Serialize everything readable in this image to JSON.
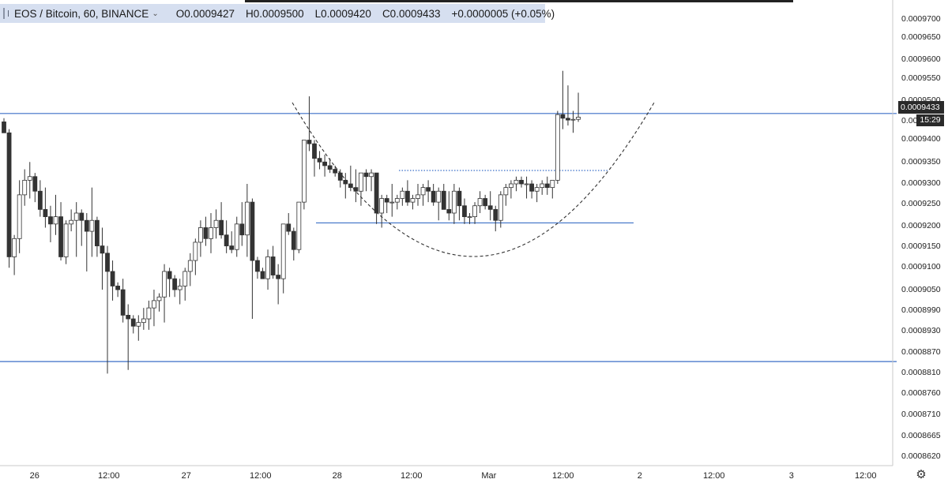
{
  "header": {
    "symbol": "EOS / Bitcoin, 60, BINANCE",
    "open": "O0.0009427",
    "high": "H0.0009500",
    "low": "L0.0009420",
    "close": "C0.0009433",
    "change": "+0.0000005 (+0.05%)"
  },
  "price_axis": {
    "labels": [
      "0.0009700",
      "0.0009650",
      "0.0009600",
      "0.0009550",
      "0.0009500",
      "0.0009450",
      "0.0009400",
      "0.0009350",
      "0.0009300",
      "0.0009250",
      "0.0009200",
      "0.0009150",
      "0.0009100",
      "0.0009050",
      "0.0008990",
      "0.0008930",
      "0.0008870",
      "0.0008810",
      "0.0008760",
      "0.0008710",
      "0.0008665",
      "0.0008620"
    ],
    "current_price": "0.0009433",
    "countdown": "15:29"
  },
  "time_axis": {
    "labels": [
      "26",
      "12:00",
      "27",
      "12:00",
      "28",
      "12:00",
      "Mar",
      "12:00",
      "2",
      "12:00",
      "3",
      "12:00"
    ]
  },
  "colors": {
    "candle_up": "#ffffff",
    "candle_down": "#333333",
    "candle_outline": "#333333",
    "horizontal_line": "#3b6fc7",
    "pattern_curve": "#333333",
    "neckline": "#3b6fc7"
  },
  "icons": {
    "settings": "gear-icon",
    "expand": "plus-square-icon"
  },
  "chart_data": {
    "type": "candlestick",
    "title": "EOS / Bitcoin, 60, BINANCE",
    "xlabel": "",
    "ylabel": "",
    "ylim": [
      0.00086,
      0.000975
    ],
    "grid": false,
    "horizontal_lines": [
      0.0009443,
      0.0009143,
      0.0008763
    ],
    "annotations": [
      "cup pattern (dashed curve)",
      "dotted neckline at ~0.0009285"
    ],
    "candles": [
      {
        "o": 0.000942,
        "h": 0.000943,
        "l": 0.000939,
        "c": 0.000939
      },
      {
        "o": 0.000939,
        "h": 0.00094,
        "l": 0.000902,
        "c": 0.000905
      },
      {
        "o": 0.000905,
        "h": 0.000911,
        "l": 0.0009,
        "c": 0.00091
      },
      {
        "o": 0.00091,
        "h": 0.000926,
        "l": 0.000906,
        "c": 0.000922
      },
      {
        "o": 0.000922,
        "h": 0.000929,
        "l": 0.000919,
        "c": 0.000926
      },
      {
        "o": 0.000926,
        "h": 0.000931,
        "l": 0.000921,
        "c": 0.000927
      },
      {
        "o": 0.000927,
        "h": 0.000928,
        "l": 0.00092,
        "c": 0.000923
      },
      {
        "o": 0.000923,
        "h": 0.000926,
        "l": 0.000916,
        "c": 0.000918
      },
      {
        "o": 0.000918,
        "h": 0.000924,
        "l": 0.000913,
        "c": 0.000916
      },
      {
        "o": 0.000916,
        "h": 0.000919,
        "l": 0.000909,
        "c": 0.000914
      },
      {
        "o": 0.000914,
        "h": 0.000922,
        "l": 0.000911,
        "c": 0.000916
      },
      {
        "o": 0.000916,
        "h": 0.00092,
        "l": 0.000904,
        "c": 0.000905
      },
      {
        "o": 0.000905,
        "h": 0.000915,
        "l": 0.000903,
        "c": 0.000914
      },
      {
        "o": 0.000914,
        "h": 0.000918,
        "l": 0.000912,
        "c": 0.000915
      },
      {
        "o": 0.000915,
        "h": 0.00092,
        "l": 0.000905,
        "c": 0.000917
      },
      {
        "o": 0.000917,
        "h": 0.000918,
        "l": 0.000908,
        "c": 0.000915
      },
      {
        "o": 0.000915,
        "h": 0.000917,
        "l": 0.000901,
        "c": 0.000912
      },
      {
        "o": 0.000912,
        "h": 0.000924,
        "l": 0.000905,
        "c": 0.000915
      },
      {
        "o": 0.000915,
        "h": 0.000916,
        "l": 0.000905,
        "c": 0.000908
      },
      {
        "o": 0.000908,
        "h": 0.000913,
        "l": 0.000896,
        "c": 0.000906
      },
      {
        "o": 0.000906,
        "h": 0.000908,
        "l": 0.000873,
        "c": 0.000901
      },
      {
        "o": 0.000901,
        "h": 0.000904,
        "l": 0.000893,
        "c": 0.000897
      },
      {
        "o": 0.000897,
        "h": 0.000898,
        "l": 0.000894,
        "c": 0.000896
      },
      {
        "o": 0.000896,
        "h": 0.000899,
        "l": 0.000887,
        "c": 0.000889
      },
      {
        "o": 0.000889,
        "h": 0.000892,
        "l": 0.000874,
        "c": 0.000888
      },
      {
        "o": 0.000888,
        "h": 0.000889,
        "l": 0.000884,
        "c": 0.000886
      },
      {
        "o": 0.000886,
        "h": 0.000889,
        "l": 0.000882,
        "c": 0.000887
      },
      {
        "o": 0.000887,
        "h": 0.000891,
        "l": 0.000885,
        "c": 0.000888
      },
      {
        "o": 0.000888,
        "h": 0.000893,
        "l": 0.000885,
        "c": 0.000891
      },
      {
        "o": 0.000891,
        "h": 0.000896,
        "l": 0.000886,
        "c": 0.000893
      },
      {
        "o": 0.000893,
        "h": 0.000895,
        "l": 0.00089,
        "c": 0.000894
      },
      {
        "o": 0.000894,
        "h": 0.000903,
        "l": 0.000887,
        "c": 0.000901
      },
      {
        "o": 0.000901,
        "h": 0.000902,
        "l": 0.000894,
        "c": 0.000899
      },
      {
        "o": 0.000899,
        "h": 0.0009,
        "l": 0.000894,
        "c": 0.000896
      },
      {
        "o": 0.000896,
        "h": 0.000899,
        "l": 0.000892,
        "c": 0.000897
      },
      {
        "o": 0.000897,
        "h": 0.000902,
        "l": 0.000893,
        "c": 0.000901
      },
      {
        "o": 0.000901,
        "h": 0.000906,
        "l": 0.000897,
        "c": 0.000904
      },
      {
        "o": 0.000904,
        "h": 0.00091,
        "l": 0.0009,
        "c": 0.000909
      },
      {
        "o": 0.000909,
        "h": 0.000915,
        "l": 0.000905,
        "c": 0.000913
      },
      {
        "o": 0.000913,
        "h": 0.000916,
        "l": 0.000908,
        "c": 0.00091
      },
      {
        "o": 0.00091,
        "h": 0.000917,
        "l": 0.000906,
        "c": 0.000913
      },
      {
        "o": 0.000913,
        "h": 0.000918,
        "l": 0.00091,
        "c": 0.000915
      },
      {
        "o": 0.000915,
        "h": 0.00092,
        "l": 0.00091,
        "c": 0.000911
      },
      {
        "o": 0.000911,
        "h": 0.000915,
        "l": 0.000906,
        "c": 0.000908
      },
      {
        "o": 0.000908,
        "h": 0.000912,
        "l": 0.000906,
        "c": 0.000907
      },
      {
        "o": 0.000907,
        "h": 0.000916,
        "l": 0.000905,
        "c": 0.000914
      },
      {
        "o": 0.000914,
        "h": 0.00092,
        "l": 0.000908,
        "c": 0.000911
      },
      {
        "o": 0.000911,
        "h": 0.000925,
        "l": 0.000905,
        "c": 0.00092
      },
      {
        "o": 0.00092,
        "h": 0.000921,
        "l": 0.000888,
        "c": 0.000904
      },
      {
        "o": 0.000904,
        "h": 0.000905,
        "l": 0.000899,
        "c": 0.000901
      },
      {
        "o": 0.000901,
        "h": 0.000902,
        "l": 0.000899,
        "c": 0.000899
      },
      {
        "o": 0.000899,
        "h": 0.000907,
        "l": 0.000896,
        "c": 0.000905
      },
      {
        "o": 0.000905,
        "h": 0.000908,
        "l": 0.000899,
        "c": 0.0009
      },
      {
        "o": 0.0009,
        "h": 0.000903,
        "l": 0.000892,
        "c": 0.000899
      },
      {
        "o": 0.000899,
        "h": 0.000913,
        "l": 0.000895,
        "c": 0.000914
      },
      {
        "o": 0.000914,
        "h": 0.000917,
        "l": 0.000911,
        "c": 0.000912
      },
      {
        "o": 0.000912,
        "h": 0.000913,
        "l": 0.000904,
        "c": 0.000907
      },
      {
        "o": 0.000907,
        "h": 0.00092,
        "l": 0.000906,
        "c": 0.00092
      },
      {
        "o": 0.00092,
        "h": 0.000937,
        "l": 0.000918,
        "c": 0.000937
      },
      {
        "o": 0.000937,
        "h": 0.000949,
        "l": 0.000934,
        "c": 0.000936
      },
      {
        "o": 0.000936,
        "h": 0.000937,
        "l": 0.000927,
        "c": 0.000932
      },
      {
        "o": 0.000932,
        "h": 0.000934,
        "l": 0.000929,
        "c": 0.000931
      },
      {
        "o": 0.000931,
        "h": 0.000933,
        "l": 0.000927,
        "c": 0.00093
      },
      {
        "o": 0.00093,
        "h": 0.000932,
        "l": 0.000928,
        "c": 0.000929
      },
      {
        "o": 0.000929,
        "h": 0.00093,
        "l": 0.000927,
        "c": 0.000928
      },
      {
        "o": 0.000928,
        "h": 0.000929,
        "l": 0.000924,
        "c": 0.000926
      },
      {
        "o": 0.000926,
        "h": 0.000928,
        "l": 0.000921,
        "c": 0.000925
      },
      {
        "o": 0.000925,
        "h": 0.00093,
        "l": 0.000923,
        "c": 0.000924
      },
      {
        "o": 0.000924,
        "h": 0.000929,
        "l": 0.00092,
        "c": 0.000923
      },
      {
        "o": 0.000923,
        "h": 0.000928,
        "l": 0.000919,
        "c": 0.000928
      },
      {
        "o": 0.000928,
        "h": 0.000929,
        "l": 0.000923,
        "c": 0.000927
      },
      {
        "o": 0.000927,
        "h": 0.000929,
        "l": 0.000923,
        "c": 0.000928
      },
      {
        "o": 0.000928,
        "h": 0.000928,
        "l": 0.000914,
        "c": 0.000917
      },
      {
        "o": 0.000917,
        "h": 0.000922,
        "l": 0.000913,
        "c": 0.000921
      },
      {
        "o": 0.000921,
        "h": 0.000922,
        "l": 0.000917,
        "c": 0.00092
      },
      {
        "o": 0.00092,
        "h": 0.000925,
        "l": 0.000916,
        "c": 0.00092
      },
      {
        "o": 0.00092,
        "h": 0.000922,
        "l": 0.000918,
        "c": 0.000921
      },
      {
        "o": 0.000921,
        "h": 0.000924,
        "l": 0.000919,
        "c": 0.000923
      },
      {
        "o": 0.000923,
        "h": 0.000926,
        "l": 0.000919,
        "c": 0.00092
      },
      {
        "o": 0.00092,
        "h": 0.000922,
        "l": 0.000918,
        "c": 0.000921
      },
      {
        "o": 0.000921,
        "h": 0.000925,
        "l": 0.000919,
        "c": 0.000922
      },
      {
        "o": 0.000922,
        "h": 0.000925,
        "l": 0.000919,
        "c": 0.000924
      },
      {
        "o": 0.000924,
        "h": 0.000926,
        "l": 0.00092,
        "c": 0.000923
      },
      {
        "o": 0.000923,
        "h": 0.000925,
        "l": 0.000919,
        "c": 0.00092
      },
      {
        "o": 0.00092,
        "h": 0.000924,
        "l": 0.000915,
        "c": 0.000923
      },
      {
        "o": 0.000923,
        "h": 0.000925,
        "l": 0.000918,
        "c": 0.000918
      },
      {
        "o": 0.000918,
        "h": 0.000923,
        "l": 0.000915,
        "c": 0.000917
      },
      {
        "o": 0.000917,
        "h": 0.000925,
        "l": 0.000914,
        "c": 0.000923
      },
      {
        "o": 0.000923,
        "h": 0.000924,
        "l": 0.000915,
        "c": 0.000919
      },
      {
        "o": 0.000919,
        "h": 0.000921,
        "l": 0.000914,
        "c": 0.000916
      },
      {
        "o": 0.000916,
        "h": 0.000917,
        "l": 0.000914,
        "c": 0.000916
      },
      {
        "o": 0.000916,
        "h": 0.00092,
        "l": 0.000914,
        "c": 0.000919
      },
      {
        "o": 0.000919,
        "h": 0.000923,
        "l": 0.000917,
        "c": 0.000921
      },
      {
        "o": 0.000921,
        "h": 0.000922,
        "l": 0.000918,
        "c": 0.000919
      },
      {
        "o": 0.000919,
        "h": 0.000923,
        "l": 0.000915,
        "c": 0.000918
      },
      {
        "o": 0.000918,
        "h": 0.000919,
        "l": 0.000912,
        "c": 0.000915
      },
      {
        "o": 0.000915,
        "h": 0.000923,
        "l": 0.000913,
        "c": 0.000922
      },
      {
        "o": 0.000922,
        "h": 0.000925,
        "l": 0.000919,
        "c": 0.000924
      },
      {
        "o": 0.000924,
        "h": 0.000926,
        "l": 0.000921,
        "c": 0.000925
      },
      {
        "o": 0.000925,
        "h": 0.000927,
        "l": 0.000923,
        "c": 0.000926
      },
      {
        "o": 0.000926,
        "h": 0.000927,
        "l": 0.000924,
        "c": 0.000925
      },
      {
        "o": 0.000925,
        "h": 0.000927,
        "l": 0.000921,
        "c": 0.000925
      },
      {
        "o": 0.000925,
        "h": 0.000926,
        "l": 0.000921,
        "c": 0.000923
      },
      {
        "o": 0.000923,
        "h": 0.000925,
        "l": 0.00092,
        "c": 0.000924
      },
      {
        "o": 0.000924,
        "h": 0.000926,
        "l": 0.000922,
        "c": 0.000925
      },
      {
        "o": 0.000925,
        "h": 0.000927,
        "l": 0.000922,
        "c": 0.000924
      },
      {
        "o": 0.000924,
        "h": 0.000926,
        "l": 0.000921,
        "c": 0.000926
      },
      {
        "o": 0.000926,
        "h": 0.000945,
        "l": 0.000925,
        "c": 0.000944
      },
      {
        "o": 0.000944,
        "h": 0.000956,
        "l": 0.00094,
        "c": 0.000943
      },
      {
        "o": 0.000943,
        "h": 0.000952,
        "l": 0.000941,
        "c": 0.0009425
      },
      {
        "o": 0.0009425,
        "h": 0.000945,
        "l": 0.000939,
        "c": 0.0009427
      },
      {
        "o": 0.0009427,
        "h": 0.00095,
        "l": 0.000942,
        "c": 0.0009433
      }
    ]
  }
}
